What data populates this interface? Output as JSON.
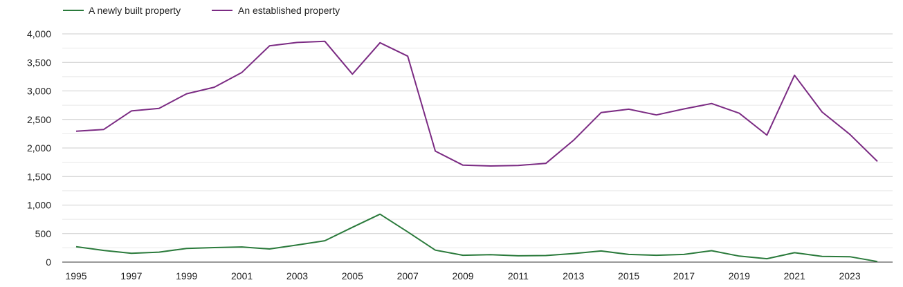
{
  "chart_data": {
    "type": "line",
    "x": [
      1995,
      1996,
      1997,
      1998,
      1999,
      2000,
      2001,
      2002,
      2003,
      2004,
      2005,
      2006,
      2007,
      2008,
      2009,
      2010,
      2011,
      2012,
      2013,
      2014,
      2015,
      2016,
      2017,
      2018,
      2019,
      2020,
      2021,
      2022,
      2023,
      2024
    ],
    "x_tick_labels": [
      "1995",
      "1997",
      "1999",
      "2001",
      "2003",
      "2005",
      "2007",
      "2009",
      "2011",
      "2013",
      "2015",
      "2017",
      "2019",
      "2021",
      "2023"
    ],
    "y_tick_labels": [
      "0",
      "500",
      "1,000",
      "1,500",
      "2,000",
      "2,500",
      "3,000",
      "3,500",
      "4,000"
    ],
    "ylim": [
      0,
      4000
    ],
    "grid": true,
    "legend_position": "top-left",
    "series": [
      {
        "name": "A newly built property",
        "color": "#2a7a3b",
        "values": [
          270,
          205,
          155,
          175,
          240,
          255,
          265,
          230,
          300,
          375,
          610,
          840,
          530,
          210,
          120,
          130,
          110,
          115,
          150,
          195,
          135,
          120,
          135,
          200,
          105,
          60,
          165,
          100,
          95,
          10
        ]
      },
      {
        "name": "An established property",
        "color": "#7b2b83",
        "values": [
          2295,
          2325,
          2650,
          2695,
          2950,
          3065,
          3325,
          3790,
          3850,
          3870,
          3295,
          3845,
          3610,
          1945,
          1700,
          1685,
          1695,
          1730,
          2135,
          2620,
          2680,
          2580,
          2685,
          2780,
          2610,
          2225,
          3275,
          2630,
          2240,
          1765
        ]
      }
    ]
  }
}
